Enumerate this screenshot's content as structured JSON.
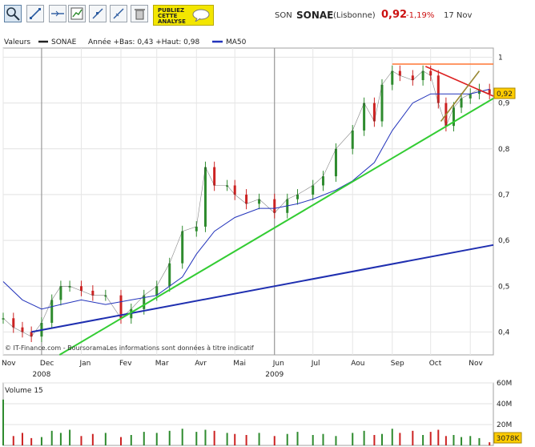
{
  "header": {
    "prefix": "SON",
    "name": "SONAE",
    "exchange": "(Lisbonne)",
    "price": "0,92",
    "change": "-1,19%",
    "date": "17 Nov",
    "promo_line1": "PUBLIEZ",
    "promo_line2": "CETTE",
    "promo_line3": "ANALYSE"
  },
  "toolbar": {
    "icons": [
      "zoom-icon",
      "cursor-icon",
      "horizontal-line-icon",
      "indicator-icon",
      "trendline-icon",
      "ruler-icon",
      "trash-icon"
    ]
  },
  "legend": {
    "valeurs": "Valeurs",
    "series": "SONAE",
    "stats": "Année +Bas: 0,43 +Haut: 0,98",
    "ma": "MA50"
  },
  "footer_note": "© IT-Finance.com - BoursoramaLes informations sont données à titre indicatif",
  "last_price_badge": "0,92",
  "volume": {
    "label": "Volume 15",
    "last_badge": "3078K",
    "y_ticks": [
      "60M",
      "40M",
      "20M"
    ]
  },
  "colors": {
    "price": "#333333",
    "up_candle": "#2e8b2e",
    "down_candle": "#cc2222",
    "ma50": "#2233bb",
    "trend_green": "#33cc33",
    "trend_blue": "#1f2fb0",
    "resistance_orange": "#ff7733",
    "channel_red": "#dd2222",
    "channel_olive": "#998833",
    "badge": "#ffcc00"
  },
  "chart_data": {
    "type": "line",
    "title": "SON SONAE (Lisbonne)",
    "xlabel": "",
    "ylabel": "",
    "ylim": [
      0.35,
      1.02
    ],
    "y_ticks": [
      0.4,
      0.5,
      0.6,
      0.7,
      0.8,
      0.9,
      1
    ],
    "y_tick_labels": [
      "0,4",
      "0,5",
      "0,6",
      "0,7",
      "0,8",
      "0,9",
      "1"
    ],
    "x_tick_labels": [
      "Nov",
      "Dec",
      "Jan",
      "Fev",
      "Mar",
      "Avr",
      "Mai",
      "Jun",
      "Jul",
      "Aou",
      "Sep",
      "Oct",
      "Nov"
    ],
    "x_year_labels": [
      "2008",
      "2009"
    ],
    "x_range_days": [
      0,
      383
    ],
    "x_ticks_days": [
      0,
      30,
      61,
      92,
      120,
      151,
      181,
      212,
      242,
      273,
      304,
      334,
      365
    ],
    "year_tick_days": [
      30,
      212
    ],
    "grid": true,
    "series": [
      {
        "name": "SONAE",
        "style": "candlestick",
        "x": [
          0,
          8,
          15,
          22,
          30,
          38,
          45,
          52,
          61,
          70,
          80,
          92,
          100,
          110,
          120,
          130,
          140,
          151,
          158,
          165,
          175,
          181,
          190,
          200,
          212,
          222,
          230,
          242,
          250,
          260,
          273,
          282,
          290,
          296,
          304,
          310,
          320,
          328,
          334,
          340,
          346,
          352,
          358,
          365,
          372,
          380
        ],
        "y": [
          0.43,
          0.41,
          0.4,
          0.39,
          0.42,
          0.47,
          0.5,
          0.5,
          0.49,
          0.48,
          0.48,
          0.43,
          0.45,
          0.48,
          0.5,
          0.55,
          0.62,
          0.63,
          0.76,
          0.72,
          0.72,
          0.7,
          0.68,
          0.69,
          0.66,
          0.69,
          0.7,
          0.72,
          0.74,
          0.8,
          0.84,
          0.9,
          0.86,
          0.94,
          0.97,
          0.96,
          0.95,
          0.97,
          0.96,
          0.9,
          0.85,
          0.89,
          0.91,
          0.92,
          0.93,
          0.92
        ]
      },
      {
        "name": "MA50",
        "x": [
          0,
          15,
          30,
          45,
          61,
          80,
          100,
          120,
          140,
          151,
          165,
          181,
          200,
          212,
          230,
          242,
          260,
          273,
          290,
          304,
          320,
          334,
          350,
          365,
          380
        ],
        "y": [
          0.51,
          0.47,
          0.45,
          0.46,
          0.47,
          0.46,
          0.47,
          0.48,
          0.52,
          0.57,
          0.62,
          0.65,
          0.67,
          0.67,
          0.68,
          0.69,
          0.71,
          0.73,
          0.77,
          0.84,
          0.9,
          0.92,
          0.92,
          0.92,
          0.93
        ]
      },
      {
        "name": "",
        "style": "trendline",
        "x": [
          22,
          383
        ],
        "y": [
          0.4,
          0.59
        ]
      },
      {
        "name": "",
        "style": "trendline",
        "x": [
          44,
          383
        ],
        "y": [
          0.35,
          0.91
        ]
      },
      {
        "name": "",
        "style": "trendline",
        "x": [
          304,
          383
        ],
        "y": [
          0.985,
          0.985
        ]
      },
      {
        "name": "",
        "style": "trendline",
        "x": [
          330,
          383
        ],
        "y": [
          0.98,
          0.915
        ]
      },
      {
        "name": "",
        "style": "trendline",
        "x": [
          342,
          372
        ],
        "y": [
          0.86,
          0.97
        ]
      }
    ],
    "volume": {
      "unit": "M",
      "ylim": [
        0,
        60
      ],
      "x": [
        0,
        8,
        15,
        22,
        30,
        38,
        45,
        52,
        61,
        70,
        80,
        92,
        100,
        110,
        120,
        130,
        140,
        151,
        158,
        165,
        175,
        181,
        190,
        200,
        212,
        222,
        230,
        242,
        250,
        260,
        273,
        282,
        290,
        296,
        304,
        310,
        320,
        328,
        334,
        340,
        346,
        352,
        358,
        365,
        372,
        380
      ],
      "values": [
        44,
        9,
        12,
        7,
        8,
        14,
        12,
        15,
        9,
        11,
        12,
        8,
        10,
        13,
        12,
        14,
        16,
        13,
        15,
        14,
        12,
        11,
        10,
        12,
        9,
        11,
        13,
        10,
        11,
        9,
        12,
        14,
        10,
        11,
        16,
        12,
        14,
        10,
        13,
        15,
        9,
        10,
        8,
        9,
        7,
        3
      ]
    }
  }
}
